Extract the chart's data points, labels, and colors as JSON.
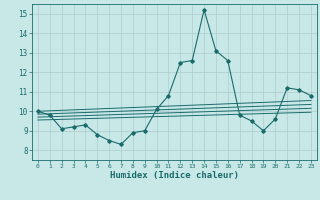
{
  "xlabel": "Humidex (Indice chaleur)",
  "ylabel": "",
  "xlim": [
    -0.5,
    23.5
  ],
  "ylim": [
    7.5,
    15.5
  ],
  "yticks": [
    8,
    9,
    10,
    11,
    12,
    13,
    14,
    15
  ],
  "xticks": [
    0,
    1,
    2,
    3,
    4,
    5,
    6,
    7,
    8,
    9,
    10,
    11,
    12,
    13,
    14,
    15,
    16,
    17,
    18,
    19,
    20,
    21,
    22,
    23
  ],
  "bg_color": "#c8e8e8",
  "grid_color": "#b0cccc",
  "line_color": "#1a6b6b",
  "main_data_x": [
    0,
    1,
    2,
    3,
    4,
    5,
    6,
    7,
    8,
    9,
    10,
    11,
    12,
    13,
    14,
    15,
    16,
    17,
    18,
    19,
    20,
    21,
    22,
    23
  ],
  "main_data_y": [
    10.0,
    9.8,
    9.1,
    9.2,
    9.3,
    8.8,
    8.5,
    8.3,
    8.9,
    9.0,
    10.1,
    10.8,
    12.5,
    12.6,
    15.2,
    13.1,
    12.6,
    9.8,
    9.5,
    9.0,
    9.6,
    11.2,
    11.1,
    10.8
  ],
  "trend_lines": [
    {
      "x0": 0,
      "y0": 10.0,
      "x1": 23,
      "y1": 10.55
    },
    {
      "x0": 0,
      "y0": 9.85,
      "x1": 23,
      "y1": 10.35
    },
    {
      "x0": 0,
      "y0": 9.7,
      "x1": 23,
      "y1": 10.15
    },
    {
      "x0": 0,
      "y0": 9.55,
      "x1": 23,
      "y1": 9.95
    }
  ]
}
